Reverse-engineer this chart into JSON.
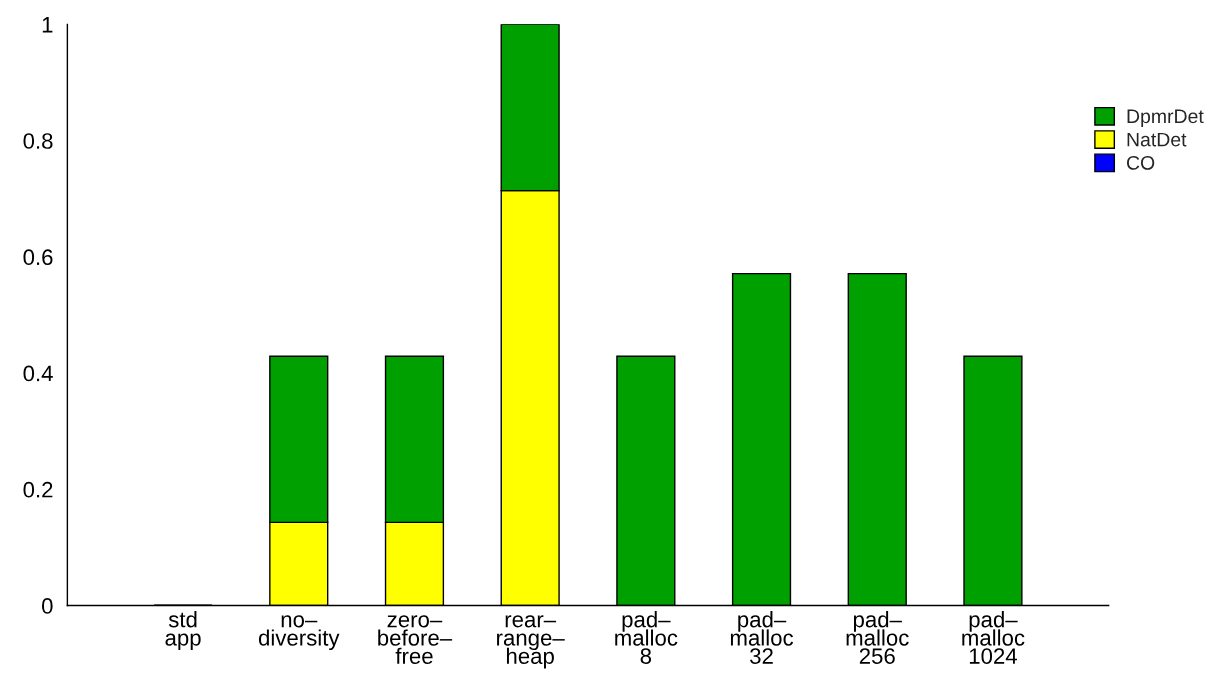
{
  "chart_data": {
    "type": "bar",
    "stacked": true,
    "categories": [
      "std\napp",
      "no–\ndiversity",
      "zero–\nbefore–\nfree",
      "rear–\nrange–\nheap",
      "pad–\nmalloc\n8",
      "pad–\nmalloc\n32",
      "pad–\nmalloc\n256",
      "pad–\nmalloc\n1024"
    ],
    "series": [
      {
        "name": "CO",
        "color": "#0000ff",
        "values": [
          0,
          0,
          0,
          0,
          0,
          0,
          0,
          0
        ]
      },
      {
        "name": "NatDet",
        "color": "#ffff00",
        "values": [
          0,
          0.143,
          0.143,
          0.714,
          0,
          0,
          0,
          0
        ]
      },
      {
        "name": "DpmrDet",
        "color": "#00a000",
        "values": [
          0,
          0.286,
          0.286,
          0.286,
          0.429,
          0.571,
          0.571,
          0.429
        ]
      }
    ],
    "ylim": [
      0,
      1
    ],
    "yticks": [
      0,
      0.2,
      0.4,
      0.6,
      0.8,
      1
    ],
    "grid": false,
    "legend": "right"
  }
}
